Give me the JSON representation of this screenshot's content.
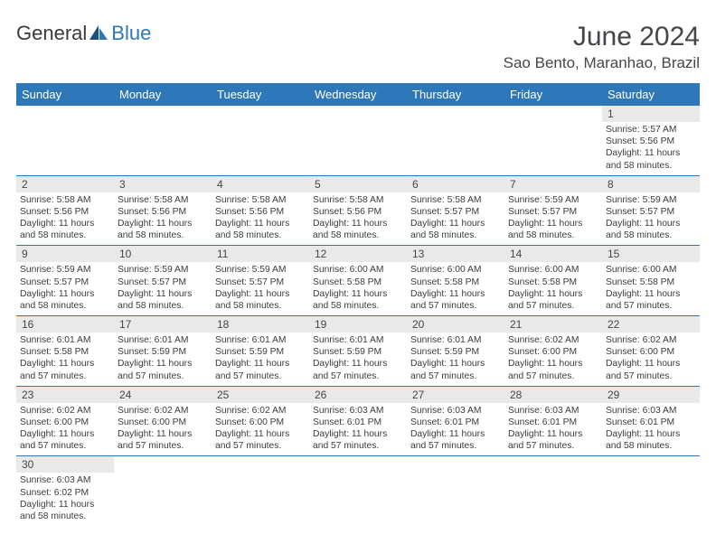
{
  "brand": {
    "part1": "General",
    "part2": "Blue"
  },
  "title": "June 2024",
  "location": "Sao Bento, Maranhao, Brazil",
  "weekdays": [
    "Sunday",
    "Monday",
    "Tuesday",
    "Wednesday",
    "Thursday",
    "Friday",
    "Saturday"
  ],
  "header_bg": "#2e77b8",
  "header_fg": "#ffffff",
  "daynum_bg": "#e9e9e9",
  "cell_border": "#2e77b8",
  "text_color": "#3c3c3c",
  "title_color": "#44464a",
  "font_family": "Arial",
  "title_fontsize": 30,
  "location_fontsize": 17,
  "weekday_fontsize": 13,
  "daynum_fontsize": 12,
  "body_fontsize": 10.3,
  "weeks": [
    [
      null,
      null,
      null,
      null,
      null,
      null,
      {
        "n": "1",
        "lines": [
          "Sunrise: 5:57 AM",
          "Sunset: 5:56 PM",
          "Daylight: 11 hours",
          "and 58 minutes."
        ]
      }
    ],
    [
      {
        "n": "2",
        "lines": [
          "Sunrise: 5:58 AM",
          "Sunset: 5:56 PM",
          "Daylight: 11 hours",
          "and 58 minutes."
        ]
      },
      {
        "n": "3",
        "lines": [
          "Sunrise: 5:58 AM",
          "Sunset: 5:56 PM",
          "Daylight: 11 hours",
          "and 58 minutes."
        ]
      },
      {
        "n": "4",
        "lines": [
          "Sunrise: 5:58 AM",
          "Sunset: 5:56 PM",
          "Daylight: 11 hours",
          "and 58 minutes."
        ]
      },
      {
        "n": "5",
        "lines": [
          "Sunrise: 5:58 AM",
          "Sunset: 5:56 PM",
          "Daylight: 11 hours",
          "and 58 minutes."
        ]
      },
      {
        "n": "6",
        "lines": [
          "Sunrise: 5:58 AM",
          "Sunset: 5:57 PM",
          "Daylight: 11 hours",
          "and 58 minutes."
        ]
      },
      {
        "n": "7",
        "lines": [
          "Sunrise: 5:59 AM",
          "Sunset: 5:57 PM",
          "Daylight: 11 hours",
          "and 58 minutes."
        ]
      },
      {
        "n": "8",
        "lines": [
          "Sunrise: 5:59 AM",
          "Sunset: 5:57 PM",
          "Daylight: 11 hours",
          "and 58 minutes."
        ]
      }
    ],
    [
      {
        "n": "9",
        "lines": [
          "Sunrise: 5:59 AM",
          "Sunset: 5:57 PM",
          "Daylight: 11 hours",
          "and 58 minutes."
        ]
      },
      {
        "n": "10",
        "lines": [
          "Sunrise: 5:59 AM",
          "Sunset: 5:57 PM",
          "Daylight: 11 hours",
          "and 58 minutes."
        ]
      },
      {
        "n": "11",
        "lines": [
          "Sunrise: 5:59 AM",
          "Sunset: 5:57 PM",
          "Daylight: 11 hours",
          "and 58 minutes."
        ]
      },
      {
        "n": "12",
        "lines": [
          "Sunrise: 6:00 AM",
          "Sunset: 5:58 PM",
          "Daylight: 11 hours",
          "and 58 minutes."
        ]
      },
      {
        "n": "13",
        "lines": [
          "Sunrise: 6:00 AM",
          "Sunset: 5:58 PM",
          "Daylight: 11 hours",
          "and 57 minutes."
        ]
      },
      {
        "n": "14",
        "lines": [
          "Sunrise: 6:00 AM",
          "Sunset: 5:58 PM",
          "Daylight: 11 hours",
          "and 57 minutes."
        ]
      },
      {
        "n": "15",
        "lines": [
          "Sunrise: 6:00 AM",
          "Sunset: 5:58 PM",
          "Daylight: 11 hours",
          "and 57 minutes."
        ]
      }
    ],
    [
      {
        "n": "16",
        "lines": [
          "Sunrise: 6:01 AM",
          "Sunset: 5:58 PM",
          "Daylight: 11 hours",
          "and 57 minutes."
        ]
      },
      {
        "n": "17",
        "lines": [
          "Sunrise: 6:01 AM",
          "Sunset: 5:59 PM",
          "Daylight: 11 hours",
          "and 57 minutes."
        ]
      },
      {
        "n": "18",
        "lines": [
          "Sunrise: 6:01 AM",
          "Sunset: 5:59 PM",
          "Daylight: 11 hours",
          "and 57 minutes."
        ]
      },
      {
        "n": "19",
        "lines": [
          "Sunrise: 6:01 AM",
          "Sunset: 5:59 PM",
          "Daylight: 11 hours",
          "and 57 minutes."
        ]
      },
      {
        "n": "20",
        "lines": [
          "Sunrise: 6:01 AM",
          "Sunset: 5:59 PM",
          "Daylight: 11 hours",
          "and 57 minutes."
        ]
      },
      {
        "n": "21",
        "lines": [
          "Sunrise: 6:02 AM",
          "Sunset: 6:00 PM",
          "Daylight: 11 hours",
          "and 57 minutes."
        ]
      },
      {
        "n": "22",
        "lines": [
          "Sunrise: 6:02 AM",
          "Sunset: 6:00 PM",
          "Daylight: 11 hours",
          "and 57 minutes."
        ]
      }
    ],
    [
      {
        "n": "23",
        "lines": [
          "Sunrise: 6:02 AM",
          "Sunset: 6:00 PM",
          "Daylight: 11 hours",
          "and 57 minutes."
        ]
      },
      {
        "n": "24",
        "lines": [
          "Sunrise: 6:02 AM",
          "Sunset: 6:00 PM",
          "Daylight: 11 hours",
          "and 57 minutes."
        ]
      },
      {
        "n": "25",
        "lines": [
          "Sunrise: 6:02 AM",
          "Sunset: 6:00 PM",
          "Daylight: 11 hours",
          "and 57 minutes."
        ]
      },
      {
        "n": "26",
        "lines": [
          "Sunrise: 6:03 AM",
          "Sunset: 6:01 PM",
          "Daylight: 11 hours",
          "and 57 minutes."
        ]
      },
      {
        "n": "27",
        "lines": [
          "Sunrise: 6:03 AM",
          "Sunset: 6:01 PM",
          "Daylight: 11 hours",
          "and 57 minutes."
        ]
      },
      {
        "n": "28",
        "lines": [
          "Sunrise: 6:03 AM",
          "Sunset: 6:01 PM",
          "Daylight: 11 hours",
          "and 57 minutes."
        ]
      },
      {
        "n": "29",
        "lines": [
          "Sunrise: 6:03 AM",
          "Sunset: 6:01 PM",
          "Daylight: 11 hours",
          "and 58 minutes."
        ]
      }
    ],
    [
      {
        "n": "30",
        "lines": [
          "Sunrise: 6:03 AM",
          "Sunset: 6:02 PM",
          "Daylight: 11 hours",
          "and 58 minutes."
        ]
      },
      null,
      null,
      null,
      null,
      null,
      null
    ]
  ]
}
